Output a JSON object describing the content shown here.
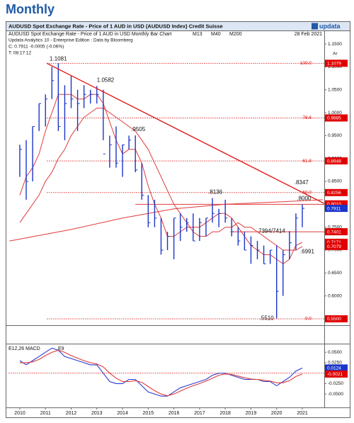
{
  "heading": "Monthly",
  "header": {
    "title": "AUDUSD Spot Exchange Rate - Price of 1 AUD in USD (AUDUSD Index)  Credit Suisse",
    "brand": "updata",
    "subtitle": "AUDUSD Spot Exchange Rate - Price of 1 AUD in USD Monthly Bar Chart",
    "date": "28 Feb 2021",
    "source": "Updata Analytics 10 - Enterprise Edition : Data by Bloomberg",
    "quote": "C: 0.7911  -0.0005 (-0.06%)",
    "time": "T: 08:17:12"
  },
  "chart_data": [
    {
      "type": "ohlc",
      "corner_label": "Ar",
      "bar_color": "#1a35c8",
      "x": [
        2010,
        2010.25,
        2010.5,
        2010.75,
        2011,
        2011.25,
        2011.5,
        2011.75,
        2012,
        2012.25,
        2012.5,
        2012.75,
        2013,
        2013.25,
        2013.5,
        2013.75,
        2014,
        2014.25,
        2014.5,
        2014.75,
        2015,
        2015.25,
        2015.5,
        2015.75,
        2016,
        2016.25,
        2016.5,
        2016.75,
        2017,
        2017.25,
        2017.5,
        2017.75,
        2018,
        2018.25,
        2018.5,
        2018.75,
        2019,
        2019.25,
        2019.5,
        2019.75,
        2020,
        2020.25,
        2020.5,
        2020.75,
        2021
      ],
      "high": [
        0.93,
        0.94,
        0.97,
        1.02,
        1.04,
        1.1,
        1.1081,
        1.06,
        1.08,
        1.05,
        1.06,
        1.05,
        1.0582,
        1.05,
        0.95,
        0.97,
        0.93,
        0.95,
        0.9505,
        0.89,
        0.82,
        0.81,
        0.77,
        0.74,
        0.77,
        0.78,
        0.77,
        0.78,
        0.77,
        0.77,
        0.8136,
        0.79,
        0.81,
        0.77,
        0.75,
        0.74,
        0.73,
        0.72,
        0.71,
        0.7,
        0.71,
        0.7,
        0.7414,
        0.78,
        0.8
      ],
      "low": [
        0.86,
        0.81,
        0.85,
        0.96,
        0.97,
        1.03,
        0.96,
        0.94,
        1.01,
        0.96,
        1.01,
        1.02,
        1.02,
        0.94,
        0.88,
        0.88,
        0.86,
        0.92,
        0.87,
        0.81,
        0.75,
        0.75,
        0.69,
        0.7,
        0.68,
        0.72,
        0.74,
        0.72,
        0.72,
        0.73,
        0.76,
        0.75,
        0.76,
        0.73,
        0.71,
        0.7,
        0.67,
        0.68,
        0.67,
        0.67,
        0.551,
        0.6,
        0.68,
        0.7,
        0.75
      ],
      "close": [
        0.92,
        0.85,
        0.97,
        1.02,
        1.03,
        1.07,
        0.97,
        1.02,
        1.03,
        1.02,
        1.04,
        1.04,
        1.04,
        0.91,
        0.93,
        0.89,
        0.93,
        0.94,
        0.875,
        0.82,
        0.76,
        0.77,
        0.7,
        0.73,
        0.77,
        0.75,
        0.76,
        0.72,
        0.76,
        0.77,
        0.78,
        0.78,
        0.77,
        0.74,
        0.72,
        0.7,
        0.71,
        0.7,
        0.67,
        0.7,
        0.61,
        0.69,
        0.716,
        0.77,
        0.7911
      ],
      "lines": [
        {
          "name": "M13",
          "color": "#e03a3a",
          "values": [
            0.82,
            0.86,
            0.88,
            0.91,
            0.96,
            1.0,
            1.04,
            1.04,
            1.04,
            1.03,
            1.03,
            1.04,
            1.04,
            1.02,
            0.98,
            0.94,
            0.91,
            0.92,
            0.92,
            0.89,
            0.84,
            0.8,
            0.77,
            0.73,
            0.73,
            0.74,
            0.75,
            0.75,
            0.75,
            0.76,
            0.77,
            0.78,
            0.78,
            0.77,
            0.75,
            0.73,
            0.71,
            0.7,
            0.69,
            0.69,
            0.68,
            0.67,
            0.68,
            0.71,
            0.7171
          ]
        },
        {
          "name": "M40",
          "color": "#e03a3a",
          "values": [
            0.76,
            0.78,
            0.8,
            0.82,
            0.85,
            0.87,
            0.9,
            0.92,
            0.95,
            0.97,
            0.99,
            1.0,
            1.01,
            1.01,
            1.0,
            0.99,
            0.98,
            0.97,
            0.96,
            0.94,
            0.92,
            0.89,
            0.86,
            0.83,
            0.8,
            0.78,
            0.76,
            0.74,
            0.73,
            0.73,
            0.74,
            0.74,
            0.75,
            0.75,
            0.76,
            0.75,
            0.75,
            0.74,
            0.73,
            0.72,
            0.71,
            0.7,
            0.7,
            0.7,
            0.7079
          ]
        },
        {
          "name": "M200",
          "color": "#e03a3a",
          "x": [
            2009.6,
            2012,
            2014,
            2016,
            2018,
            2020,
            2021.8
          ],
          "values": [
            0.72,
            0.745,
            0.77,
            0.79,
            0.8,
            0.805,
            0.81
          ]
        }
      ],
      "fib_start": 2011.05,
      "fib_levels": [
        {
          "label": "100.0",
          "value": 1.1079
        },
        {
          "label": "78.6",
          "value": 0.9885
        },
        {
          "label": "61.8",
          "value": 0.8948
        },
        {
          "label": "50.0",
          "value": 0.8256
        },
        {
          "label": "0.0",
          "value": 0.55
        }
      ],
      "trendline": {
        "x": [
          2011.05,
          2021.85
        ],
        "values": [
          1.1081,
          0.802
        ]
      },
      "hlines": [
        {
          "x_start": 2014.5,
          "value": 0.8
        },
        {
          "x_start": 2018.2,
          "value": 0.7401
        }
      ],
      "annotations": [
        {
          "text": "1.1081",
          "x": 2011.05,
          "y": 1.1081
        },
        {
          "text": "1.0582",
          "x": 2013.0,
          "y": 1.0582
        },
        {
          "text": ".9505",
          "x": 2014.5,
          "y": 0.9505
        },
        {
          "text": ".8136",
          "x": 2017.5,
          "y": 0.8136
        },
        {
          "text": ".8347",
          "x": 2020.8,
          "y": 0.8347
        },
        {
          "text": ".8000",
          "x": 2020.9,
          "y": 0.8
        },
        {
          "text": "7394/7414",
          "x": 2020.5,
          "y": 0.7414
        },
        {
          "text": ".6991",
          "x": 2020.75,
          "y": 0.6991
        },
        {
          "text": ".5510",
          "x": 2020.0,
          "y": 0.551
        }
      ],
      "price_tags": [
        {
          "value": 1.1079,
          "label": "1.1079",
          "color": "#e00000"
        },
        {
          "value": 0.9885,
          "label": "0.9885",
          "color": "#e00000"
        },
        {
          "value": 0.8948,
          "label": "0.8948",
          "color": "#e00000"
        },
        {
          "value": 0.8256,
          "label": "0.8256",
          "color": "#e00000"
        },
        {
          "value": 0.801,
          "label": "0.8010",
          "color": "#e00000"
        },
        {
          "value": 0.7911,
          "label": "0.7911",
          "color": "#1a35c8"
        },
        {
          "value": 0.7401,
          "label": "0.7401",
          "color": "#e00000"
        },
        {
          "value": 0.7171,
          "label": "0.7171",
          "color": "#e00000"
        },
        {
          "value": 0.7079,
          "label": "0.7079",
          "color": "#e00000"
        },
        {
          "value": 0.55,
          "label": "0.5500",
          "color": "#e00000"
        }
      ],
      "xlim": [
        2009.56,
        2021.855
      ],
      "ylim": [
        0.536,
        1.178
      ],
      "yticks": [
        {
          "value": 0.55,
          "label": "0.5500"
        },
        {
          "value": 0.6,
          "label": "0.6000"
        },
        {
          "value": 0.65,
          "label": "0.6500"
        },
        {
          "value": 0.7,
          "label": "0.7000"
        },
        {
          "value": 0.75,
          "label": "0.7500"
        },
        {
          "value": 0.8,
          "label": "0.8000"
        },
        {
          "value": 0.85,
          "label": "0.8500"
        },
        {
          "value": 0.9,
          "label": "0.9000"
        },
        {
          "value": 0.95,
          "label": "0.9500"
        },
        {
          "value": 1,
          "label": "1.0000"
        },
        {
          "value": 1.05,
          "label": "1.0500"
        },
        {
          "value": 1.1,
          "label": "1.1000"
        },
        {
          "value": 1.15,
          "label": "1.1500"
        }
      ]
    },
    {
      "type": "line",
      "x": [
        2010,
        2010.25,
        2010.5,
        2010.75,
        2011,
        2011.25,
        2011.5,
        2011.75,
        2012,
        2012.25,
        2012.5,
        2012.75,
        2013,
        2013.25,
        2013.5,
        2013.75,
        2014,
        2014.25,
        2014.5,
        2014.75,
        2015,
        2015.25,
        2015.5,
        2015.75,
        2016,
        2016.25,
        2016.5,
        2016.75,
        2017,
        2017.25,
        2017.5,
        2017.75,
        2018,
        2018.25,
        2018.5,
        2018.75,
        2019,
        2019.25,
        2019.5,
        2019.75,
        2020,
        2020.25,
        2020.5,
        2020.75,
        2021
      ],
      "series": [
        {
          "name": "E12,26 MACD",
          "color": "#2a3ad0",
          "values": [
            0.03,
            0.02,
            0.03,
            0.04,
            0.05,
            0.06,
            0.055,
            0.04,
            0.035,
            0.03,
            0.025,
            0.02,
            0.02,
            0.0,
            -0.02,
            -0.025,
            -0.025,
            -0.015,
            -0.015,
            -0.03,
            -0.045,
            -0.05,
            -0.055,
            -0.055,
            -0.045,
            -0.035,
            -0.03,
            -0.025,
            -0.02,
            -0.015,
            -0.005,
            0.0,
            0.0,
            -0.005,
            -0.01,
            -0.015,
            -0.015,
            -0.015,
            -0.02,
            -0.02,
            -0.03,
            -0.02,
            -0.01,
            0.005,
            0.0124
          ]
        },
        {
          "name": "E9",
          "color": "#e03a3a",
          "values": [
            0.025,
            0.025,
            0.027,
            0.033,
            0.042,
            0.05,
            0.055,
            0.05,
            0.042,
            0.036,
            0.03,
            0.025,
            0.022,
            0.015,
            0.0,
            -0.012,
            -0.02,
            -0.02,
            -0.018,
            -0.022,
            -0.032,
            -0.042,
            -0.05,
            -0.054,
            -0.05,
            -0.043,
            -0.036,
            -0.03,
            -0.025,
            -0.019,
            -0.012,
            -0.005,
            -0.002,
            -0.003,
            -0.007,
            -0.011,
            -0.014,
            -0.015,
            -0.017,
            -0.019,
            -0.023,
            -0.023,
            -0.018,
            -0.008,
            -0.0021
          ]
        }
      ],
      "price_tags": [
        {
          "value": 0.0124,
          "label": "0.0124",
          "color": "#1a35c8"
        },
        {
          "value": -0.0021,
          "label": "-0.0021",
          "color": "#e00000"
        }
      ],
      "xlim": [
        2009.56,
        2021.855
      ],
      "ylim": [
        -0.082,
        0.069
      ],
      "xticks": [
        2010,
        2011,
        2012,
        2013,
        2014,
        2015,
        2016,
        2017,
        2018,
        2019,
        2020,
        2021
      ],
      "yticks": [
        {
          "value": 0.05,
          "label": "0.0500"
        },
        {
          "value": 0.025,
          "label": "0.0250"
        },
        {
          "value": -0.025,
          "label": "-0.0250"
        },
        {
          "value": -0.05,
          "label": "-0.0500"
        }
      ]
    }
  ]
}
